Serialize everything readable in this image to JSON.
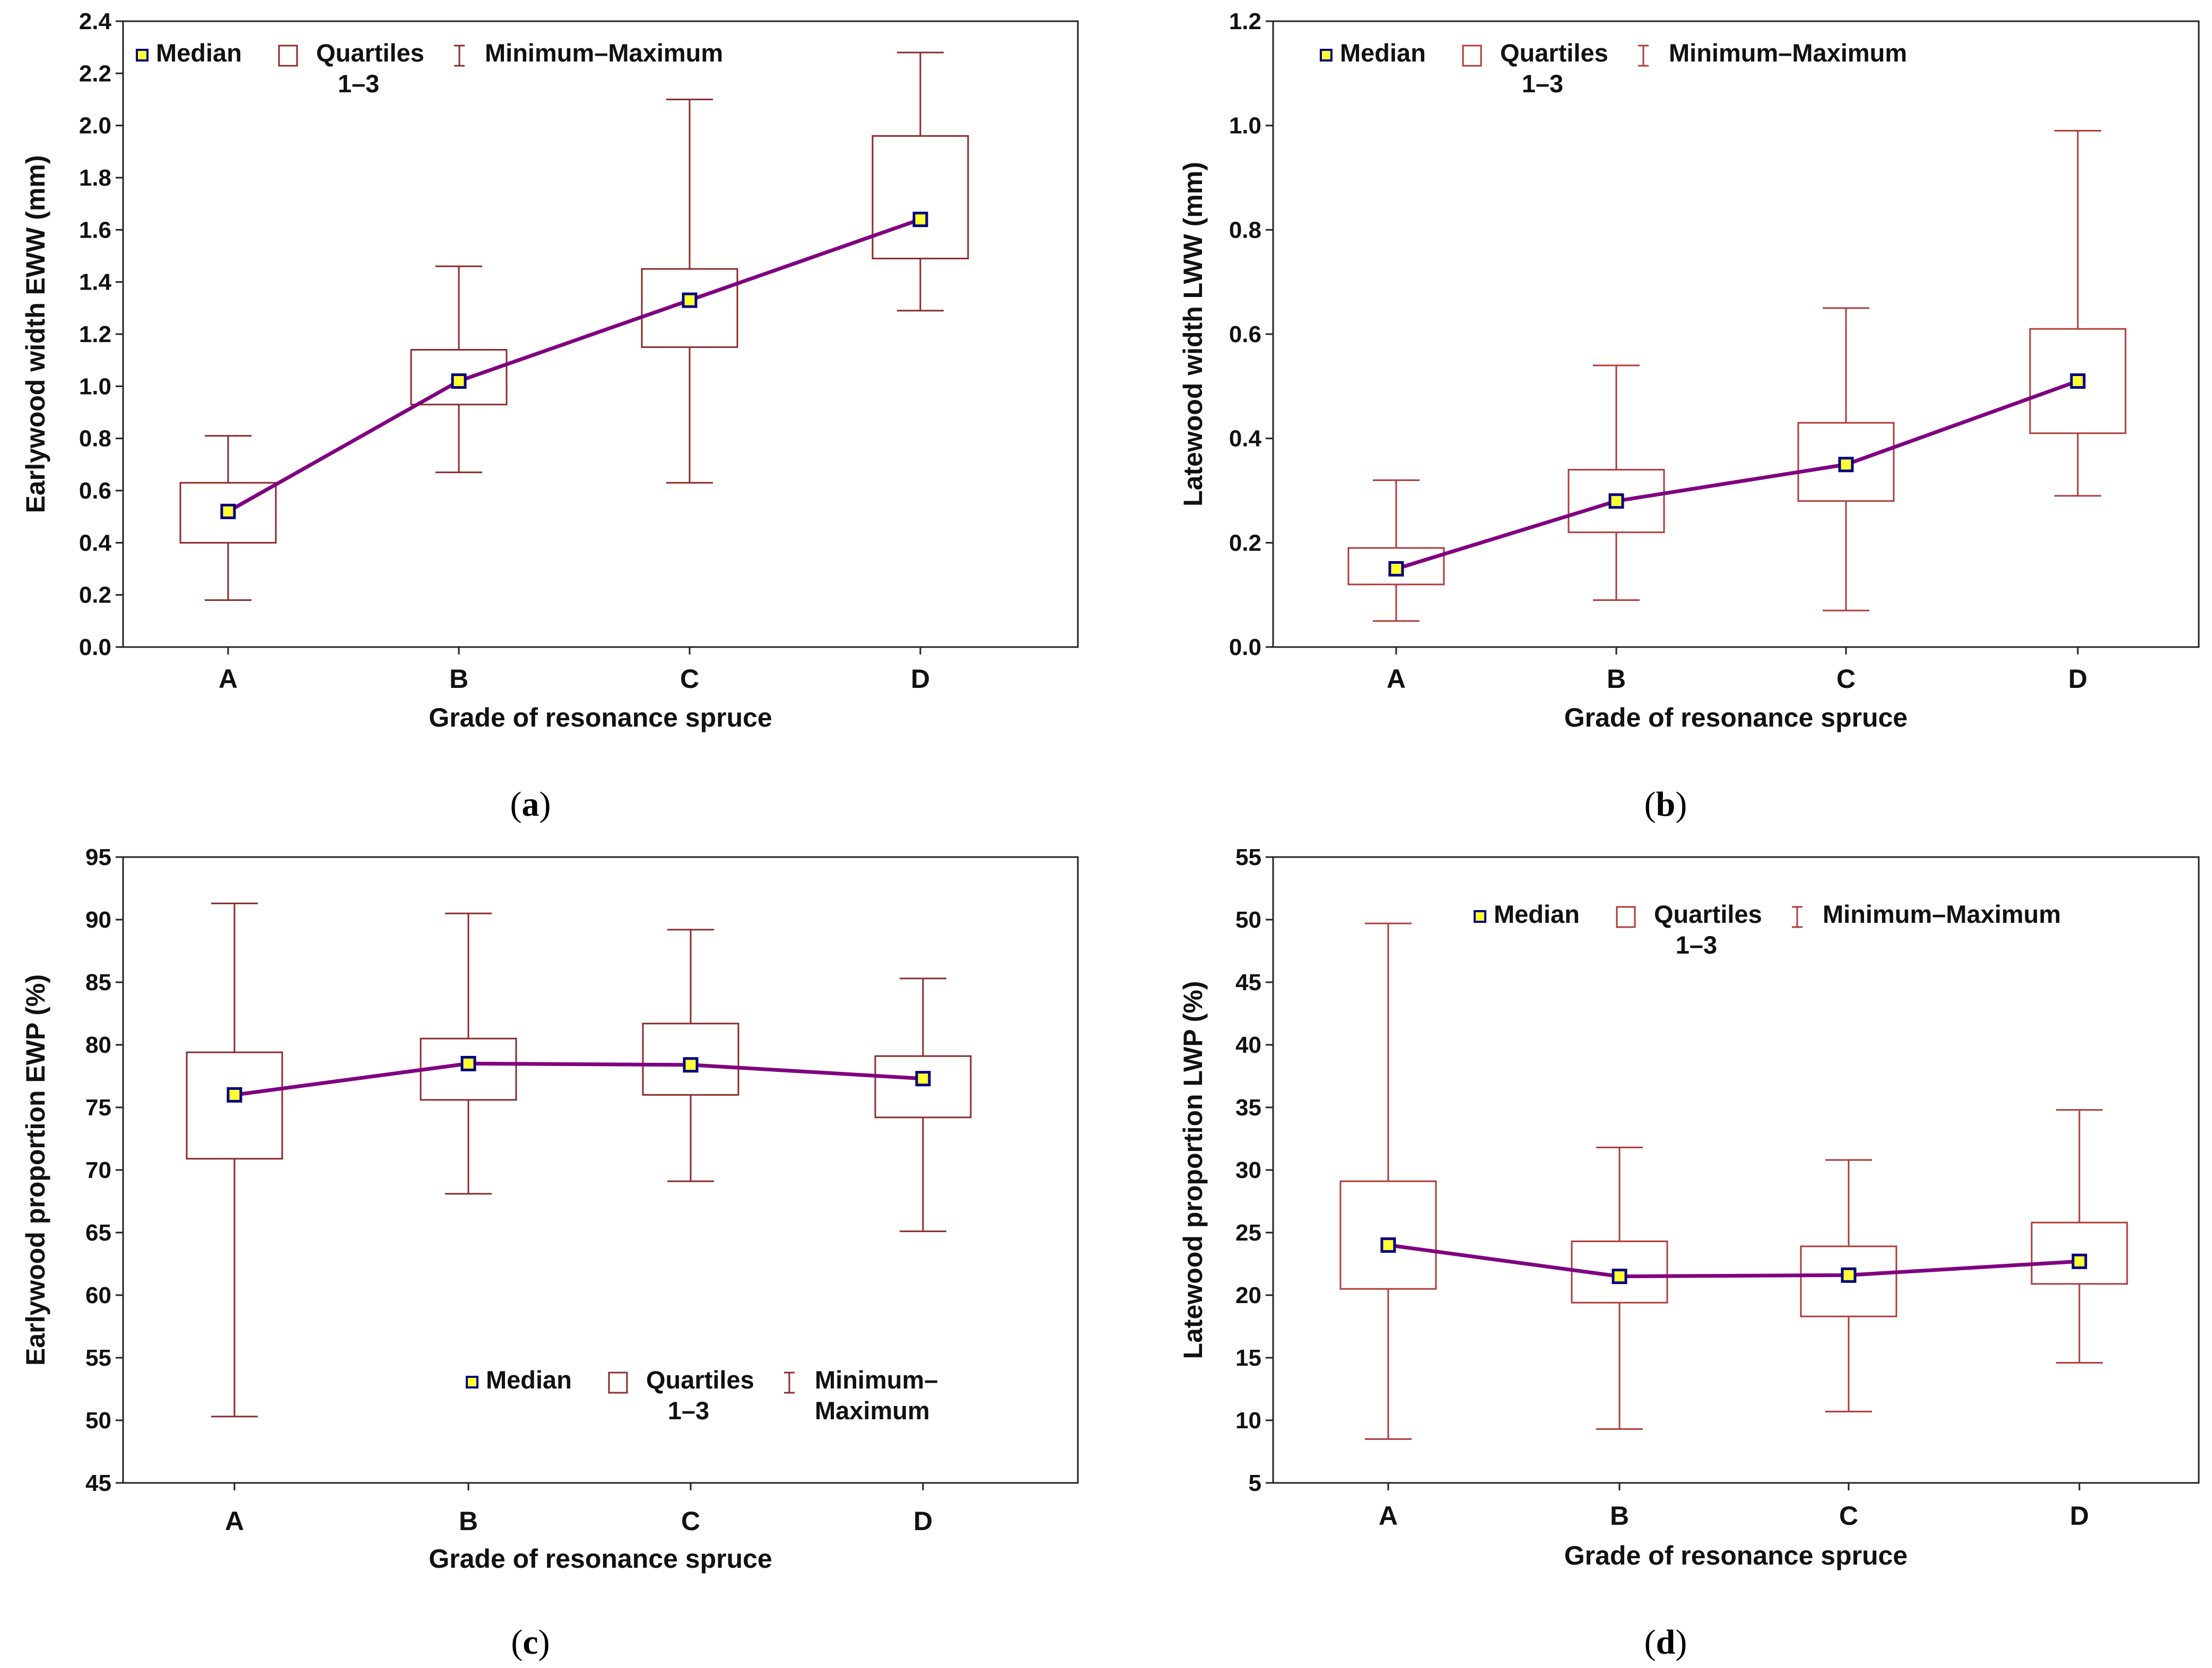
{
  "colors": {
    "panel_ab_box": "#8B2A2A",
    "panel_bd_box": "#B03A3A",
    "median_line": "#800080",
    "marker_fill": "#FFFF33",
    "marker_edge": "#000080",
    "frame": "#222222"
  },
  "chart_data": [
    {
      "type": "boxplot",
      "panel": "a",
      "panel_label": {
        "open": "(",
        "letter": "a",
        "close": ")"
      },
      "xlabel": "Grade of resonance spruce",
      "ylabel": "Earlywood width EWW (mm)",
      "categories": [
        "A",
        "B",
        "C",
        "D"
      ],
      "ylim": [
        0.0,
        2.4
      ],
      "yticks": [
        "0.0",
        "0.2",
        "0.4",
        "0.6",
        "0.8",
        "1.0",
        "1.2",
        "1.4",
        "1.6",
        "1.8",
        "2.0",
        "2.2",
        "2.4"
      ],
      "ytick_values": [
        0.0,
        0.2,
        0.4,
        0.6,
        0.8,
        1.0,
        1.2,
        1.4,
        1.6,
        1.8,
        2.0,
        2.2,
        2.4
      ],
      "series": [
        {
          "category": "A",
          "min": 0.18,
          "q1": 0.4,
          "median": 0.52,
          "q3": 0.63,
          "max": 0.81
        },
        {
          "category": "B",
          "min": 0.67,
          "q1": 0.93,
          "median": 1.02,
          "q3": 1.14,
          "max": 1.46
        },
        {
          "category": "C",
          "min": 0.63,
          "q1": 1.15,
          "median": 1.33,
          "q3": 1.45,
          "max": 2.1
        },
        {
          "category": "D",
          "min": 1.29,
          "q1": 1.49,
          "median": 1.64,
          "q3": 1.96,
          "max": 2.28
        }
      ],
      "legend": {
        "median": "Median",
        "quartiles": "Quartiles",
        "quartiles_range": "1–3",
        "minmax": "Minimum–Maximum",
        "position": "top-left"
      }
    },
    {
      "type": "boxplot",
      "panel": "b",
      "panel_label": {
        "open": "(",
        "letter": "b",
        "close": ")"
      },
      "xlabel": "Grade of resonance spruce",
      "ylabel": "Latewood width LWW (mm)",
      "categories": [
        "A",
        "B",
        "C",
        "D"
      ],
      "ylim": [
        0.0,
        1.2
      ],
      "yticks": [
        "0.0",
        "0.2",
        "0.4",
        "0.6",
        "0.8",
        "1.0",
        "1.2"
      ],
      "ytick_values": [
        0.0,
        0.2,
        0.4,
        0.6,
        0.8,
        1.0,
        1.2
      ],
      "series": [
        {
          "category": "A",
          "min": 0.05,
          "q1": 0.12,
          "median": 0.15,
          "q3": 0.19,
          "max": 0.32
        },
        {
          "category": "B",
          "min": 0.09,
          "q1": 0.22,
          "median": 0.28,
          "q3": 0.34,
          "max": 0.54
        },
        {
          "category": "C",
          "min": 0.07,
          "q1": 0.28,
          "median": 0.35,
          "q3": 0.43,
          "max": 0.65
        },
        {
          "category": "D",
          "min": 0.29,
          "q1": 0.41,
          "median": 0.51,
          "q3": 0.61,
          "max": 0.99
        }
      ],
      "legend": {
        "median": "Median",
        "quartiles": "Quartiles",
        "quartiles_range": "1–3",
        "minmax": "Minimum–Maximum",
        "position": "top-left"
      }
    },
    {
      "type": "boxplot",
      "panel": "c",
      "panel_label": {
        "open": "(",
        "letter": "c",
        "close": ")"
      },
      "xlabel": "Grade of resonance spruce",
      "ylabel": "Earlywood proportion EWP (%)",
      "categories": [
        "A",
        "B",
        "C",
        "D"
      ],
      "ylim": [
        45,
        95
      ],
      "yticks": [
        "45",
        "50",
        "55",
        "60",
        "65",
        "70",
        "75",
        "80",
        "85",
        "90",
        "95"
      ],
      "ytick_values": [
        45,
        50,
        55,
        60,
        65,
        70,
        75,
        80,
        85,
        90,
        95
      ],
      "series": [
        {
          "category": "A",
          "min": 50.3,
          "q1": 70.9,
          "median": 76.0,
          "q3": 79.4,
          "max": 91.3
        },
        {
          "category": "B",
          "min": 68.1,
          "q1": 75.6,
          "median": 78.5,
          "q3": 80.5,
          "max": 90.5
        },
        {
          "category": "C",
          "min": 69.1,
          "q1": 76.0,
          "median": 78.4,
          "q3": 81.7,
          "max": 89.2
        },
        {
          "category": "D",
          "min": 65.1,
          "q1": 74.2,
          "median": 77.3,
          "q3": 79.1,
          "max": 85.3
        }
      ],
      "legend": {
        "median": "Median",
        "quartiles": "Quartiles",
        "quartiles_range": "1–3",
        "minmax": "Minimum–",
        "minmax_line2": "Maximum",
        "position": "bottom-right"
      }
    },
    {
      "type": "boxplot",
      "panel": "d",
      "panel_label": {
        "open": "(",
        "letter": "d",
        "close": ")"
      },
      "xlabel": "Grade of resonance spruce",
      "ylabel": "Latewood proportion LWP (%)",
      "categories": [
        "A",
        "B",
        "C",
        "D"
      ],
      "ylim": [
        5,
        55
      ],
      "yticks": [
        "5",
        "10",
        "15",
        "20",
        "25",
        "30",
        "35",
        "40",
        "45",
        "50",
        "55"
      ],
      "ytick_values": [
        5,
        10,
        15,
        20,
        25,
        30,
        35,
        40,
        45,
        50,
        55
      ],
      "series": [
        {
          "category": "A",
          "min": 8.5,
          "q1": 20.5,
          "median": 24.0,
          "q3": 29.1,
          "max": 49.7
        },
        {
          "category": "B",
          "min": 9.3,
          "q1": 19.4,
          "median": 21.5,
          "q3": 24.3,
          "max": 31.8
        },
        {
          "category": "C",
          "min": 10.7,
          "q1": 18.3,
          "median": 21.6,
          "q3": 23.9,
          "max": 30.8
        },
        {
          "category": "D",
          "min": 14.6,
          "q1": 20.9,
          "median": 22.7,
          "q3": 25.8,
          "max": 34.8
        }
      ],
      "legend": {
        "median": "Median",
        "quartiles": "Quartiles",
        "quartiles_range": "1–3",
        "minmax": "Minimum–Maximum",
        "position": "top"
      }
    }
  ]
}
